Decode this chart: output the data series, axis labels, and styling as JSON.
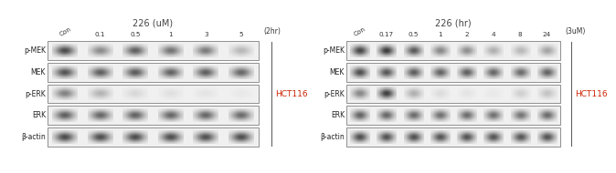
{
  "title_left": "226 (uM)",
  "title_right": "226 (hr)",
  "cols_left": [
    "Con",
    "0.1",
    "0.5",
    "1",
    "3",
    "5"
  ],
  "cols_right": [
    "Con",
    "0.17",
    "0.5",
    "1",
    "2",
    "4",
    "8",
    "24"
  ],
  "rows_left": [
    "p-MEK",
    "MEK",
    "p-ERK",
    "ERK",
    "β-actin"
  ],
  "rows_right": [
    "p-MEK",
    "MEK",
    "p-ERK",
    "ERK",
    "β-actin"
  ],
  "label_left_side": "(2hr)",
  "label_right_side": "(3uM)",
  "cell_label_left": "HCT116",
  "cell_label_right": "HCT116",
  "left_bands": {
    "p-MEK": [
      0.82,
      0.5,
      0.72,
      0.62,
      0.58,
      0.28
    ],
    "MEK": [
      0.78,
      0.72,
      0.74,
      0.7,
      0.72,
      0.68
    ],
    "p-ERK": [
      0.55,
      0.3,
      0.12,
      0.08,
      0.06,
      0.04
    ],
    "ERK": [
      0.72,
      0.68,
      0.7,
      0.68,
      0.68,
      0.66
    ],
    "β-actin": [
      0.82,
      0.8,
      0.81,
      0.8,
      0.79,
      0.8
    ]
  },
  "right_bands": {
    "p-MEK": [
      0.85,
      0.9,
      0.75,
      0.52,
      0.48,
      0.32,
      0.28,
      0.38
    ],
    "MEK": [
      0.8,
      0.76,
      0.73,
      0.7,
      0.72,
      0.68,
      0.66,
      0.7
    ],
    "p-ERK": [
      0.52,
      0.88,
      0.32,
      0.1,
      0.06,
      0.04,
      0.16,
      0.22
    ],
    "ERK": [
      0.7,
      0.68,
      0.66,
      0.63,
      0.65,
      0.63,
      0.61,
      0.66
    ],
    "β-actin": [
      0.8,
      0.78,
      0.79,
      0.77,
      0.78,
      0.77,
      0.76,
      0.78
    ]
  },
  "row_label_colors": {
    "p-MEK": "#222222",
    "MEK": "#222222",
    "p-ERK": "#222222",
    "ERK": "#222222",
    "β-actin": "#222222"
  }
}
